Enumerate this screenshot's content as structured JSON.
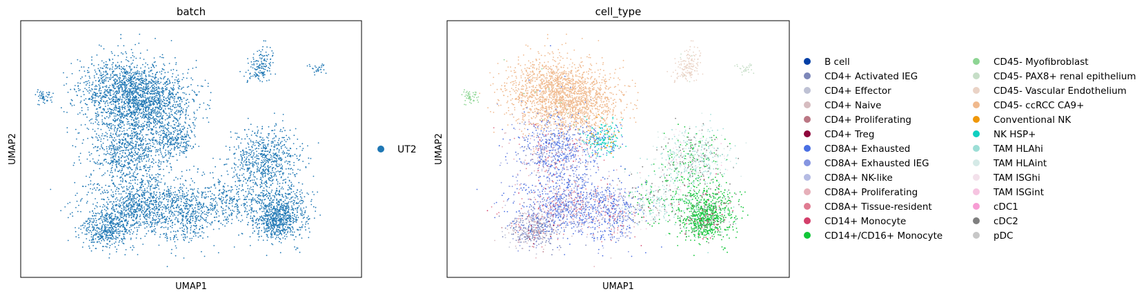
{
  "chart_data": [
    {
      "type": "scatter",
      "title": "batch",
      "xlabel": "UMAP1",
      "ylabel": "UMAP2",
      "grid": false,
      "legend_placement": "right",
      "legend": [
        {
          "label": "UT2",
          "color": "#1f77b4"
        }
      ]
    },
    {
      "type": "scatter",
      "title": "cell_type",
      "xlabel": "UMAP1",
      "ylabel": "UMAP2",
      "grid": false,
      "legend_placement": "right",
      "legend": [
        {
          "label": "B cell",
          "color": "#023fa5"
        },
        {
          "label": "CD4+ Activated IEG",
          "color": "#7d87b9"
        },
        {
          "label": "CD4+ Effector",
          "color": "#bec1d4"
        },
        {
          "label": "CD4+ Naive",
          "color": "#d6bcc0"
        },
        {
          "label": "CD4+ Proliferating",
          "color": "#bb7784"
        },
        {
          "label": "CD4+ Treg",
          "color": "#8e063b"
        },
        {
          "label": "CD8A+ Exhausted",
          "color": "#4a6fe3"
        },
        {
          "label": "CD8A+ Exhausted IEG",
          "color": "#8595e1"
        },
        {
          "label": "CD8A+ NK-like",
          "color": "#b5bbe3"
        },
        {
          "label": "CD8A+ Proliferating",
          "color": "#e6afb9"
        },
        {
          "label": "CD8A+ Tissue-resident",
          "color": "#e07b91"
        },
        {
          "label": "CD14+ Monocyte",
          "color": "#d33f6a"
        },
        {
          "label": "CD14+/CD16+ Monocyte",
          "color": "#11c638"
        },
        {
          "label": "CD45- Myofibroblast",
          "color": "#8dd593"
        },
        {
          "label": "CD45- PAX8+ renal epithelium",
          "color": "#c6dec7"
        },
        {
          "label": "CD45- Vascular Endothelium",
          "color": "#ead3c6"
        },
        {
          "label": "CD45- ccRCC CA9+",
          "color": "#f0b98d"
        },
        {
          "label": "Conventional NK",
          "color": "#ef9708"
        },
        {
          "label": "NK HSP+",
          "color": "#0fcfc0"
        },
        {
          "label": "TAM HLAhi",
          "color": "#9cded6"
        },
        {
          "label": "TAM HLAint",
          "color": "#d5eae7"
        },
        {
          "label": "TAM ISGhi",
          "color": "#f3e1eb"
        },
        {
          "label": "TAM ISGint",
          "color": "#f6c4e1"
        },
        {
          "label": "cDC1",
          "color": "#f79cd4"
        },
        {
          "label": "cDC2",
          "color": "#7f7f7f"
        },
        {
          "label": "pDC",
          "color": "#c7c7c7"
        }
      ]
    }
  ]
}
